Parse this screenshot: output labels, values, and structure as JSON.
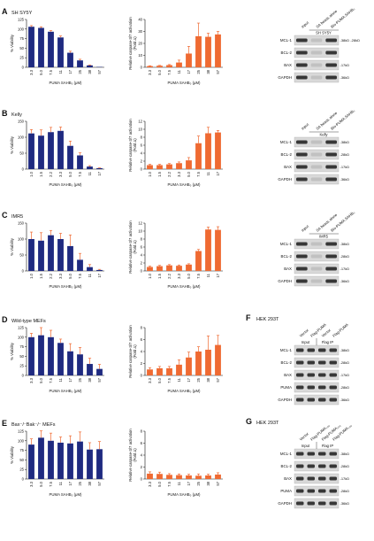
{
  "colors": {
    "viability_bar": "#1f2a80",
    "caspase_bar": "#ef6a32",
    "error_bar": "#ef6a32",
    "axis": "#111111",
    "blot_band": "#1a1a1a",
    "blot_bg": "#d9d9d9"
  },
  "text": {
    "viability_ylabel": "% Viability",
    "caspase_ylabel": "Relative caspase-3/7 activation",
    "caspase_ylabel2": "(Fold Δ)",
    "xlabel": "PUMA SAHB₀ (μM)"
  },
  "mw_markers": {
    "kd38": "-38kD",
    "kd28": "-28kD",
    "kd17": "-17kD",
    "kd36": "-36kD",
    "kd20": "-28kD"
  },
  "panels": [
    {
      "letter": "A",
      "condition": "SH SY5Y",
      "viability": {
        "type": "bar",
        "categories": [
          "3.3",
          "5.0",
          "7.5",
          "11",
          "17",
          "25",
          "38",
          "57"
        ],
        "values": [
          106,
          103,
          93,
          78,
          38,
          18,
          5,
          1
        ],
        "errors": [
          3,
          3,
          3,
          4,
          4,
          3,
          1,
          0
        ],
        "ylim": [
          0,
          125
        ],
        "yticks": [
          "0",
          "25",
          "50",
          "75",
          "100",
          "125"
        ]
      },
      "caspase": {
        "type": "bar",
        "categories": [
          "3.3",
          "5.0",
          "7.5",
          "11",
          "17",
          "25",
          "38",
          "57"
        ],
        "values": [
          1,
          1.3,
          1.8,
          4,
          11.5,
          26,
          25.5,
          27.5
        ],
        "errors": [
          0.3,
          0.3,
          0.5,
          2,
          6,
          11,
          3,
          2.5
        ],
        "ylim": [
          0,
          40
        ],
        "yticks": [
          "0",
          "10",
          "20",
          "30",
          "40"
        ]
      },
      "blot": {
        "columns": [
          "Input",
          "SA beads alone",
          "Bio-PUMA SAHB₀"
        ],
        "line_label": "SH SY5Y",
        "rows": [
          "MCL-1",
          "BCL-2",
          "BAX",
          "GAPDH"
        ],
        "markers": [
          "-38kD -28kD",
          "",
          "-17kD",
          "-36kD"
        ]
      }
    },
    {
      "letter": "B",
      "condition": "Kelly",
      "viability": {
        "type": "bar",
        "categories": [
          "1.0",
          "1.5",
          "2.2",
          "3.3",
          "5.0",
          "7.5",
          "11",
          "17"
        ],
        "values": [
          112,
          105,
          116,
          120,
          73,
          43,
          8,
          3
        ],
        "errors": [
          12,
          18,
          15,
          12,
          15,
          8,
          3,
          1
        ],
        "ylim": [
          0,
          150
        ],
        "yticks": [
          "0",
          "50",
          "100",
          "150"
        ]
      },
      "caspase": {
        "type": "bar",
        "categories": [
          "1.0",
          "1.5",
          "2.2",
          "3.3",
          "5.0",
          "7.5",
          "11",
          "17"
        ],
        "values": [
          1,
          1,
          1.2,
          1.5,
          2.2,
          6.5,
          9,
          9.2
        ],
        "errors": [
          0.2,
          0.2,
          0.2,
          0.3,
          0.7,
          1.8,
          1.5,
          0.5
        ],
        "ylim": [
          0,
          12
        ],
        "yticks": [
          "0",
          "2",
          "4",
          "6",
          "8",
          "10",
          "12"
        ]
      },
      "blot": {
        "columns": [
          "Input",
          "SA beads alone",
          "Bio-PUMA SAHB₀"
        ],
        "line_label": "Kelly",
        "rows": [
          "MCL-1",
          "BCL-2",
          "BAX",
          "GAPDH"
        ],
        "markers": [
          "-38kD",
          "-28kD",
          "-17kD",
          "-36kD"
        ]
      }
    },
    {
      "letter": "C",
      "condition": "IMR5",
      "viability": {
        "type": "bar",
        "categories": [
          "1.0",
          "1.5",
          "2.2",
          "3.3",
          "5.0",
          "7.5",
          "11",
          "17"
        ],
        "values": [
          100,
          95,
          112,
          100,
          78,
          35,
          12,
          3
        ],
        "errors": [
          22,
          25,
          15,
          18,
          35,
          20,
          8,
          2
        ],
        "ylim": [
          0,
          150
        ],
        "yticks": [
          "0",
          "50",
          "100",
          "150"
        ]
      },
      "caspase": {
        "type": "bar",
        "categories": [
          "1.0",
          "1.5",
          "2.2",
          "3.3",
          "5.0",
          "7.5",
          "11",
          "17"
        ],
        "values": [
          1,
          1.2,
          1.4,
          1.3,
          1.6,
          5,
          10.4,
          10.3
        ],
        "errors": [
          0.2,
          0.2,
          0.2,
          0.2,
          0.2,
          0.4,
          0.6,
          0.8
        ],
        "ylim": [
          0,
          12
        ],
        "yticks": [
          "0",
          "2",
          "4",
          "6",
          "8",
          "10",
          "12"
        ]
      },
      "blot": {
        "columns": [
          "Input",
          "SA beads alone",
          "Bio-PUMA SAHB₀"
        ],
        "line_label": "IMR5",
        "rows": [
          "MCL-1",
          "BCL-2",
          "BAX",
          "GAPDH"
        ],
        "markers": [
          "-38kD",
          "-28kD",
          "-17kD",
          "-36kD"
        ]
      }
    },
    {
      "letter": "D",
      "condition": "Wild-type MEFs",
      "viability": {
        "type": "bar",
        "categories": [
          "3.3",
          "5.0",
          "7.5",
          "11",
          "17",
          "25",
          "38",
          "57"
        ],
        "values": [
          100,
          105,
          100,
          85,
          63,
          55,
          30,
          17
        ],
        "errors": [
          10,
          20,
          18,
          10,
          20,
          18,
          15,
          12
        ],
        "ylim": [
          0,
          125
        ],
        "yticks": [
          "0",
          "25",
          "50",
          "75",
          "100",
          "125"
        ]
      },
      "caspase": {
        "type": "bar",
        "categories": [
          "3.3",
          "5.0",
          "7.5",
          "11",
          "17",
          "25",
          "38",
          "57"
        ],
        "values": [
          1,
          1.2,
          1.2,
          1.8,
          3,
          4,
          4.3,
          5.1
        ],
        "errors": [
          0.3,
          0.3,
          0.3,
          0.8,
          0.9,
          0.8,
          2.3,
          1.6
        ],
        "ylim": [
          0,
          8
        ],
        "yticks": [
          "0",
          "2",
          "4",
          "6",
          "8"
        ]
      },
      "blot": {
        "header": "HEK 293T",
        "letter": "F",
        "columns": [
          "Vector",
          "Flag-PUMA",
          "Vector",
          "Flag-PUMA"
        ],
        "groups": [
          "Input",
          "Flag IP"
        ],
        "rows": [
          "MCL-1",
          "BCL-2",
          "BAX",
          "PUMA",
          "GAPDH"
        ],
        "markers": [
          "-38kD",
          "-28kD",
          "-17kD",
          "-28kD",
          "-36kD"
        ]
      }
    },
    {
      "letter": "E",
      "condition": "Bax⁻/⁻Bak⁻/⁻ MEFs",
      "viability": {
        "type": "bar",
        "categories": [
          "3.3",
          "5.0",
          "7.5",
          "11",
          "17",
          "25",
          "38",
          "57"
        ],
        "values": [
          90,
          108,
          100,
          95,
          93,
          98,
          77,
          78
        ],
        "errors": [
          15,
          18,
          20,
          15,
          20,
          25,
          18,
          20
        ],
        "ylim": [
          0,
          125
        ],
        "yticks": [
          "0",
          "25",
          "50",
          "75",
          "100",
          "125"
        ]
      },
      "caspase": {
        "type": "bar",
        "categories": [
          "3.3",
          "5.0",
          "7.5",
          "11",
          "17",
          "25",
          "38",
          "57"
        ],
        "values": [
          0.9,
          0.85,
          0.7,
          0.65,
          0.6,
          0.55,
          0.6,
          0.75
        ],
        "errors": [
          0.3,
          0.3,
          0.2,
          0.2,
          0.2,
          0.3,
          0.2,
          0.3
        ],
        "ylim": [
          0,
          8
        ],
        "yticks": [
          "0",
          "2",
          "4",
          "6",
          "8"
        ]
      },
      "blot": {
        "header": "HEK 293T",
        "letter": "G",
        "columns": [
          "Vector",
          "Flag-PUMA₁₀₀",
          "Flag-PUMA₁₀₀",
          "Flag-PUMA₁₀₀"
        ],
        "groups": [
          "Input",
          "Flag IP"
        ],
        "rows": [
          "MCL-1",
          "BCL-2",
          "BAX",
          "PUMA",
          "GAPDH"
        ],
        "markers": [
          "-38kD",
          "-28kD",
          "-17kD",
          "-28kD",
          "-36kD"
        ]
      }
    }
  ]
}
